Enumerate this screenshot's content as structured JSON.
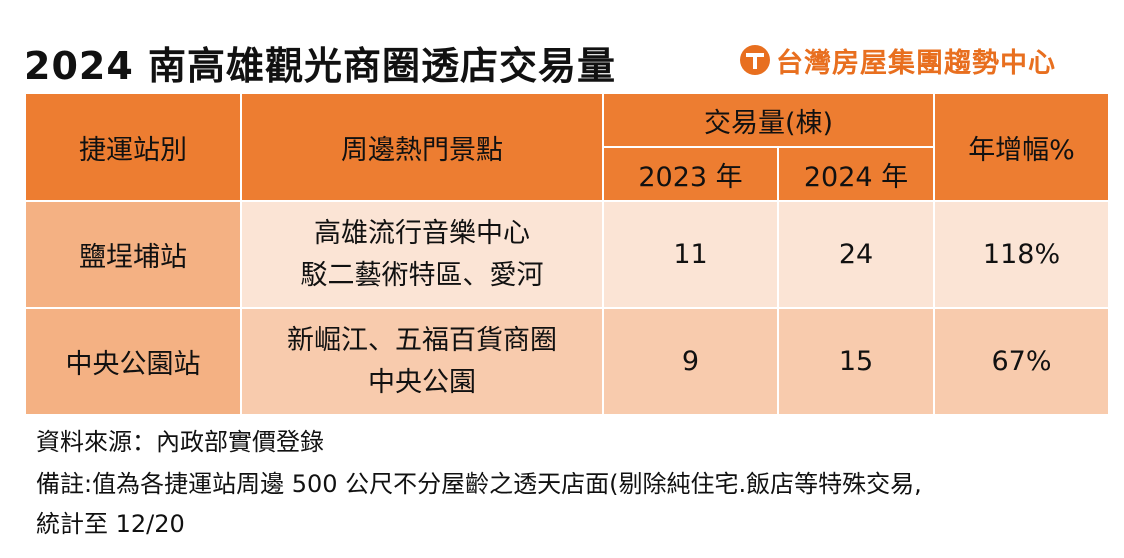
{
  "header": {
    "title": "2024 南高雄觀光商圈透店交易量",
    "brand": "台灣房屋集團趨勢中心",
    "brand_logo_icon": "taiwan-realty-logo-icon",
    "brand_color": "#e86f1f"
  },
  "colors": {
    "header_bg": "#ed7d31",
    "row_label_bg": "#f4b183",
    "row1_bg": "#fbe4d5",
    "row2_bg": "#f8cbad"
  },
  "chart_data": {
    "type": "table",
    "title": "2024 南高雄觀光商圈透店交易量",
    "columns": {
      "station": "捷運站別",
      "attractions": "周邊熱門景點",
      "volume_group": "交易量(棟)",
      "year_2023": "2023 年",
      "year_2024": "2024 年",
      "growth": "年增幅%"
    },
    "rows": [
      {
        "station": "鹽埕埔站",
        "attractions_line1": "高雄流行音樂中心",
        "attractions_line2": "駁二藝術特區、愛河",
        "v2023": "11",
        "v2024": "24",
        "growth": "118%"
      },
      {
        "station": "中央公園站",
        "attractions_line1": "新崛江、五福百貨商圈",
        "attractions_line2": "中央公園",
        "v2023": "9",
        "v2024": "15",
        "growth": "67%"
      }
    ]
  },
  "footer": {
    "source": "資料來源：內政部實價登錄",
    "note_line1": "備註:值為各捷運站周邊 500 公尺不分屋齡之透天店面(剔除純住宅.飯店等特殊交易,",
    "note_line2": "統計至 12/20"
  }
}
